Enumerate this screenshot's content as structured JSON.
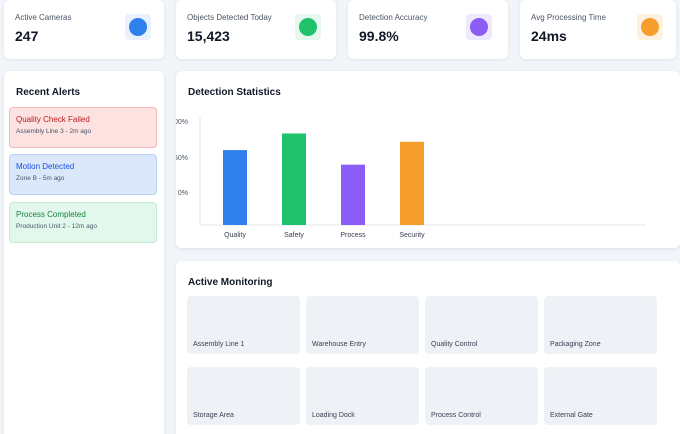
{
  "stats": [
    {
      "title": "Active Cameras",
      "value": "247",
      "icon": "camera-status-icon",
      "color": "#2f80ed",
      "bg": "#e8f1fd"
    },
    {
      "title": "Objects Detected Today",
      "value": "15,423",
      "icon": "objects-status-icon",
      "color": "#1fc16b",
      "bg": "#e6f7ee"
    },
    {
      "title": "Detection Accuracy",
      "value": "99.8%",
      "icon": "accuracy-status-icon",
      "color": "#8b5cf6",
      "bg": "#efe9fd"
    },
    {
      "title": "Avg Processing Time",
      "value": "24ms",
      "icon": "processing-status-icon",
      "color": "#f59e2b",
      "bg": "#fdf1e2"
    }
  ],
  "alerts": {
    "title": "Recent Alerts",
    "items": [
      {
        "title": "Quality Check Failed",
        "sub": "Assembly Line 3 - 2m ago",
        "bg": "#fde2e2",
        "border": "#f6b6b6",
        "color": "#b91c1c"
      },
      {
        "title": "Motion Detected",
        "sub": "Zone B - 5m ago",
        "bg": "#dbe8fb",
        "border": "#b8d0f5",
        "color": "#1d4ed8"
      },
      {
        "title": "Process Completed",
        "sub": "Production Unit 2 - 12m ago",
        "bg": "#e3f8ec",
        "border": "#c3ecd4",
        "color": "#15803d"
      }
    ]
  },
  "detection": {
    "title": "Detection Statistics"
  },
  "chart_data": {
    "type": "bar",
    "title": "",
    "xlabel": "",
    "ylabel": "",
    "categories": [
      "Quality",
      "Safety",
      "Process",
      "Security"
    ],
    "values": [
      72,
      88,
      58,
      80
    ],
    "colors": [
      "#2f80ed",
      "#1fc16b",
      "#8b5cf6",
      "#f59e2b"
    ],
    "ytick_labels": [
      "100%",
      "50%",
      "0%"
    ],
    "grid": false
  },
  "monitoring": {
    "title": "Active Monitoring",
    "tiles": [
      "Assembly Line 1",
      "Warehouse Entry",
      "Quality Control",
      "Packaging Zone",
      "Storage Area",
      "Loading Dock",
      "Process Control",
      "External Gate"
    ]
  }
}
